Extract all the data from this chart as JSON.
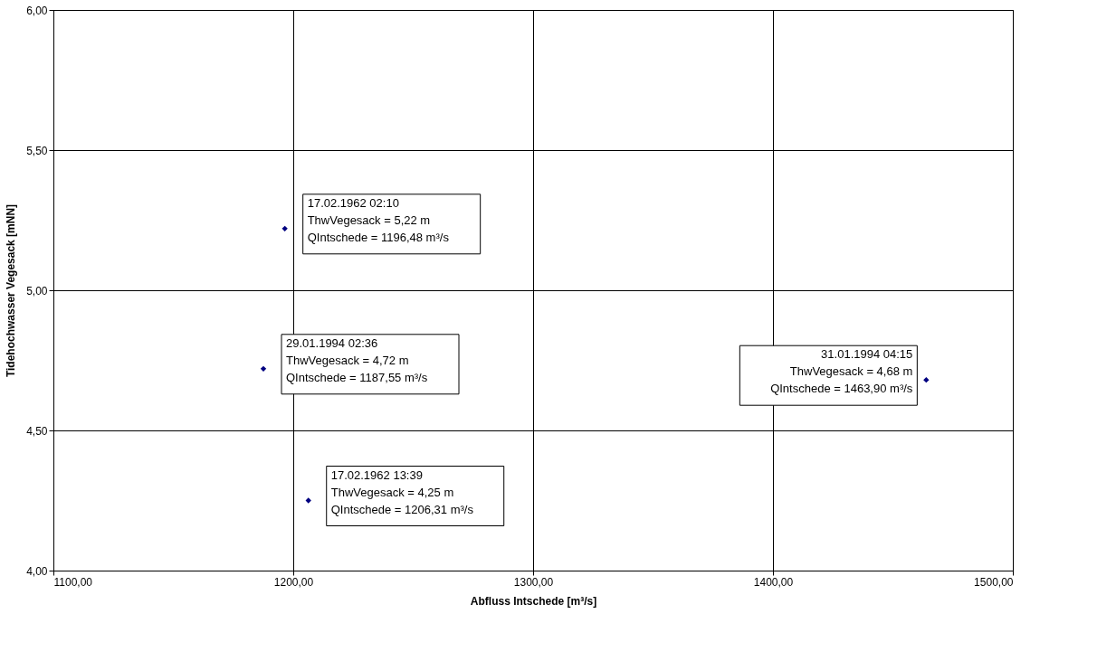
{
  "chart_data": {
    "type": "scatter",
    "xlabel": "Abfluss Intschede [m³/s]",
    "ylabel": "Tidehochwasser Vegesack [mNN]",
    "x": [
      1196.48,
      1187.55,
      1206.31,
      1463.9
    ],
    "series": [
      {
        "color": "#000080",
        "values": [
          5.22,
          4.72,
          4.25,
          4.68
        ]
      }
    ],
    "marker": "diamond",
    "grid": true,
    "xlim": [
      1100,
      1500
    ],
    "xticks": [
      {
        "value": 1100,
        "label": "1100,00"
      },
      {
        "value": 1200,
        "label": "1200,00"
      },
      {
        "value": 1300,
        "label": "1300,00"
      },
      {
        "value": 1400,
        "label": "1400,00"
      },
      {
        "value": 1500,
        "label": "1500,00"
      }
    ],
    "ylim": [
      4,
      6
    ],
    "yticks": [
      {
        "value": 4,
        "label": "4,00"
      },
      {
        "value": 4.5,
        "label": "4,50"
      },
      {
        "value": 5,
        "label": "5,00"
      },
      {
        "value": 5.5,
        "label": "5,50"
      },
      {
        "value": 6,
        "label": "6,00"
      }
    ],
    "annotations": [
      {
        "text": "17.02.1962 02:10\nThwVegesack = 5,22 m\nQIntschede = 1196,48 m³/s",
        "x": 1196.48,
        "y": 5.22
      },
      {
        "text": "29.01.1994 02:36\nThwVegesack = 4,72 m\nQIntschede = 1187,55 m³/s",
        "x": 1187.55,
        "y": 4.72
      },
      {
        "text": "17.02.1962 13:39\nThwVegesack = 4,25 m\nQIntschede = 1206,31 m³/s",
        "x": 1206.31,
        "y": 4.25
      },
      {
        "text": "31.01.1994 04:15\nThwVegesack = 4,68 m\nQIntschede = 1463,90 m³/s",
        "x": 1463.9,
        "y": 4.68
      }
    ]
  }
}
